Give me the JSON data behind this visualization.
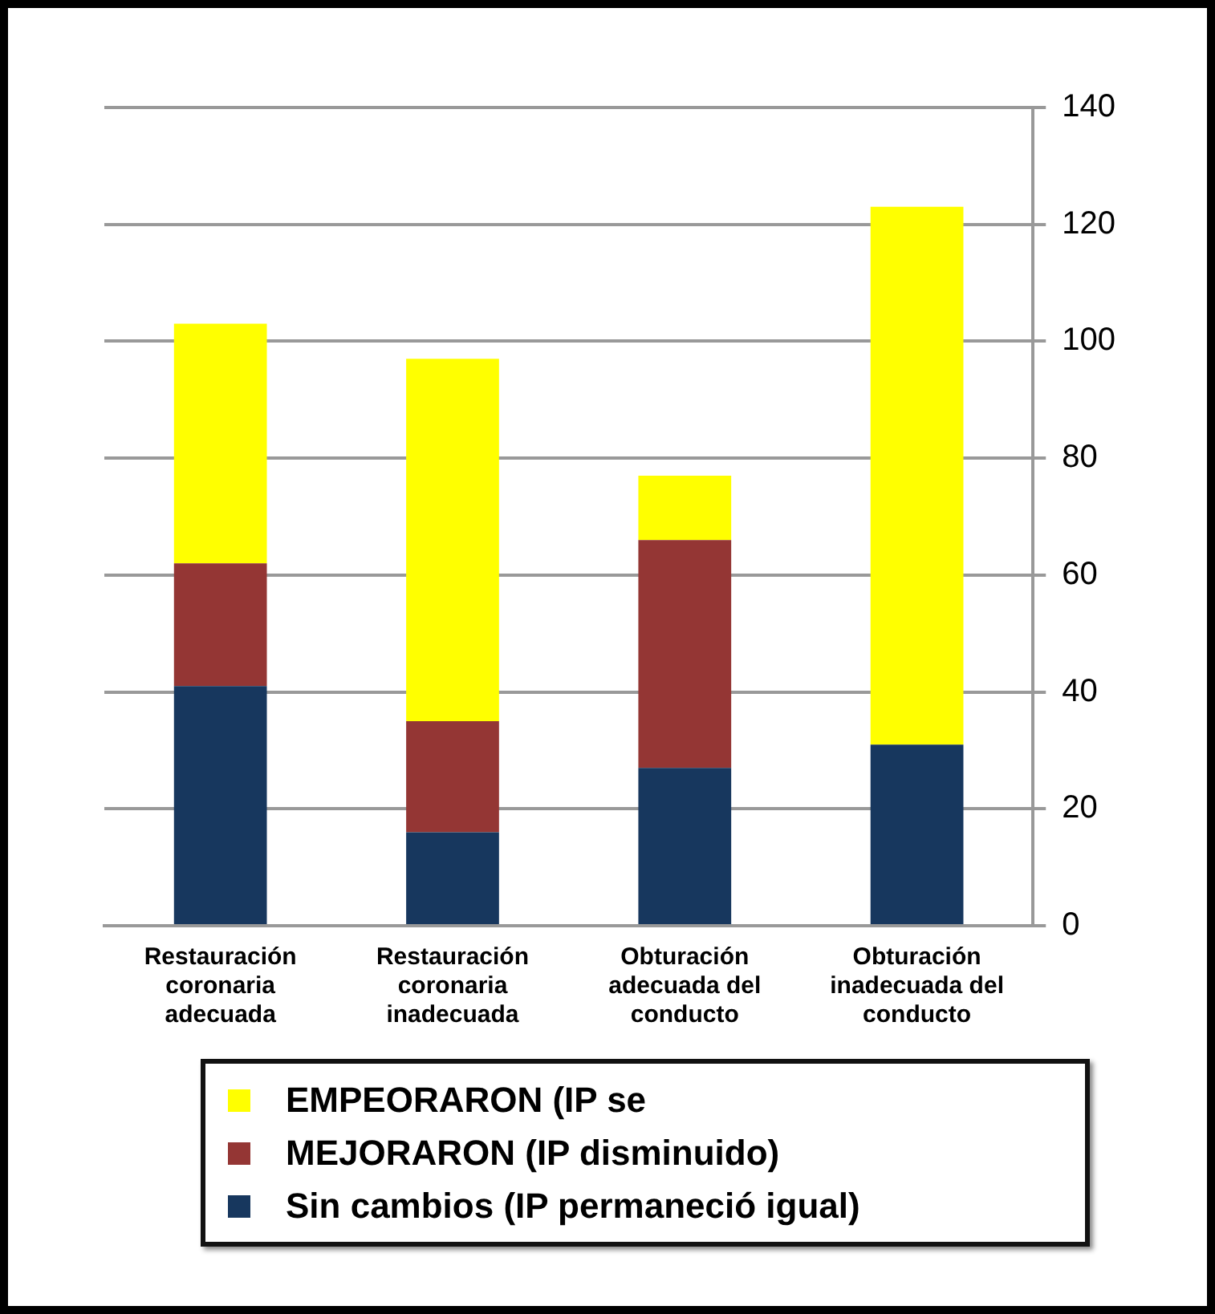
{
  "chart_data": {
    "type": "bar",
    "stacked": true,
    "categories": [
      "Restauración coronaria adecuada",
      "Restauración coronaria inadecuada",
      "Obturación adecuada del conducto",
      "Obturación inadecuada del conducto"
    ],
    "series": [
      {
        "name": "Sin cambios (IP permaneció igual)",
        "color": "#17375e",
        "values": [
          41,
          16,
          27,
          31
        ]
      },
      {
        "name": "MEJORARON (IP disminuido)",
        "color": "#943634",
        "values": [
          21,
          19,
          39,
          0
        ]
      },
      {
        "name": "EMPEORARON (IP se",
        "color": "#ffff00",
        "values": [
          41,
          62,
          11,
          92
        ]
      }
    ],
    "ylim": [
      0,
      140
    ],
    "yticks": [
      0,
      20,
      40,
      60,
      80,
      100,
      120,
      140
    ],
    "grid": "y",
    "legend": "bottom"
  }
}
